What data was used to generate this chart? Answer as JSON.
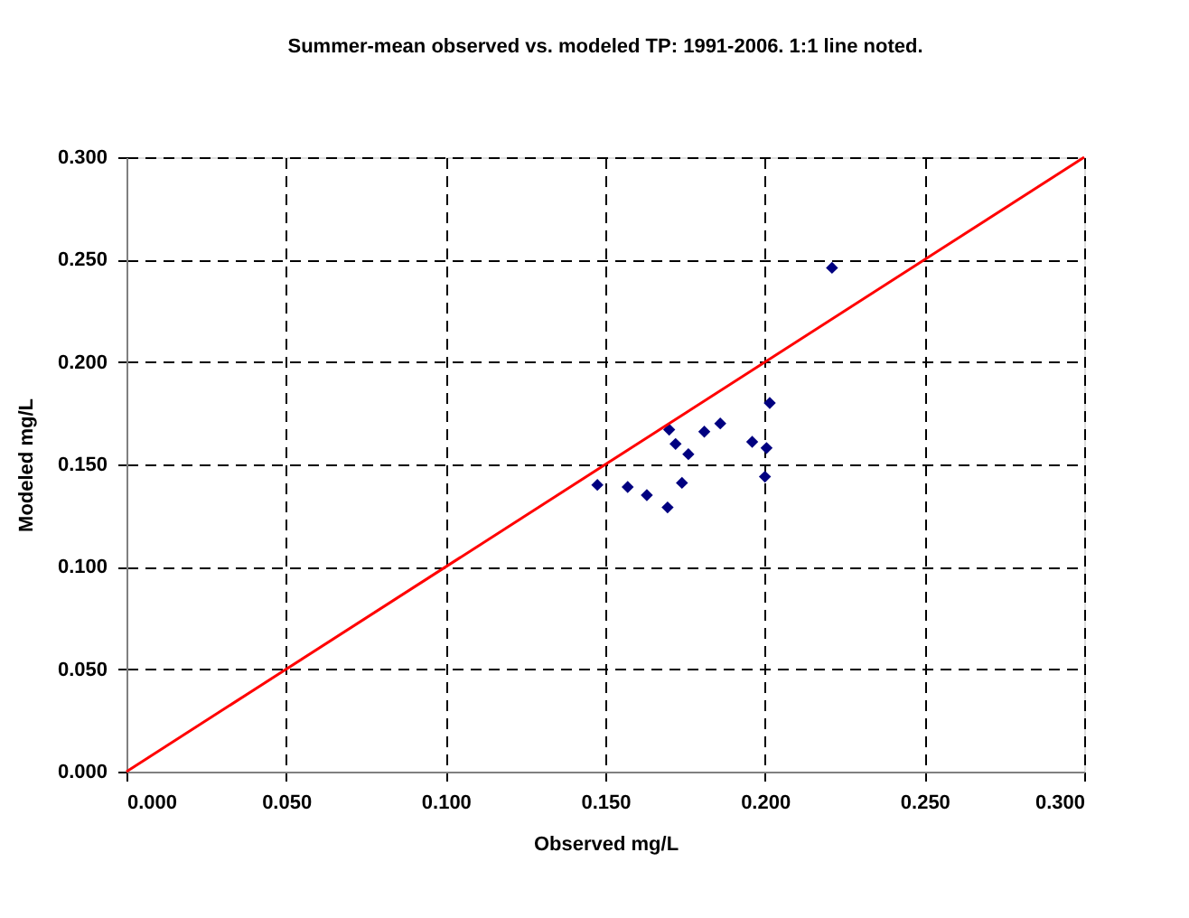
{
  "chart_data": {
    "type": "scatter",
    "title": "Summer-mean observed vs. modeled TP: 1991-2006. 1:1 line noted.",
    "xlabel": "Observed mg/L",
    "ylabel": "Modeled mg/L",
    "series": [
      {
        "color": "#000080",
        "marker": "diamond",
        "x": [
          0.1475,
          0.157,
          0.163,
          0.1695,
          0.17,
          0.172,
          0.176,
          0.174,
          0.181,
          0.186,
          0.196,
          0.2005,
          0.2,
          0.2015,
          0.221
        ],
        "values": [
          0.14,
          0.139,
          0.135,
          0.129,
          0.167,
          0.16,
          0.155,
          0.141,
          0.166,
          0.17,
          0.161,
          0.158,
          0.144,
          0.18,
          0.246
        ]
      },
      {
        "type": "line",
        "color": "#ff0000",
        "marker": "none",
        "x": [
          0,
          0.3
        ],
        "values": [
          0,
          0.3
        ]
      }
    ],
    "xlim": [
      0,
      0.3
    ],
    "ylim": [
      0,
      0.3
    ],
    "xticks": [
      {
        "value": 0,
        "label": "0.000"
      },
      {
        "value": 0.05,
        "label": "0.050"
      },
      {
        "value": 0.1,
        "label": "0.100"
      },
      {
        "value": 0.15,
        "label": "0.150"
      },
      {
        "value": 0.2,
        "label": "0.200"
      },
      {
        "value": 0.25,
        "label": "0.250"
      },
      {
        "value": 0.3,
        "label": "0.300"
      }
    ],
    "yticks": [
      {
        "value": 0,
        "label": "0.000"
      },
      {
        "value": 0.05,
        "label": "0.050"
      },
      {
        "value": 0.1,
        "label": "0.100"
      },
      {
        "value": 0.15,
        "label": "0.150"
      },
      {
        "value": 0.2,
        "label": "0.200"
      },
      {
        "value": 0.25,
        "label": "0.250"
      },
      {
        "value": 0.3,
        "label": "0.300"
      }
    ],
    "grid": true
  }
}
